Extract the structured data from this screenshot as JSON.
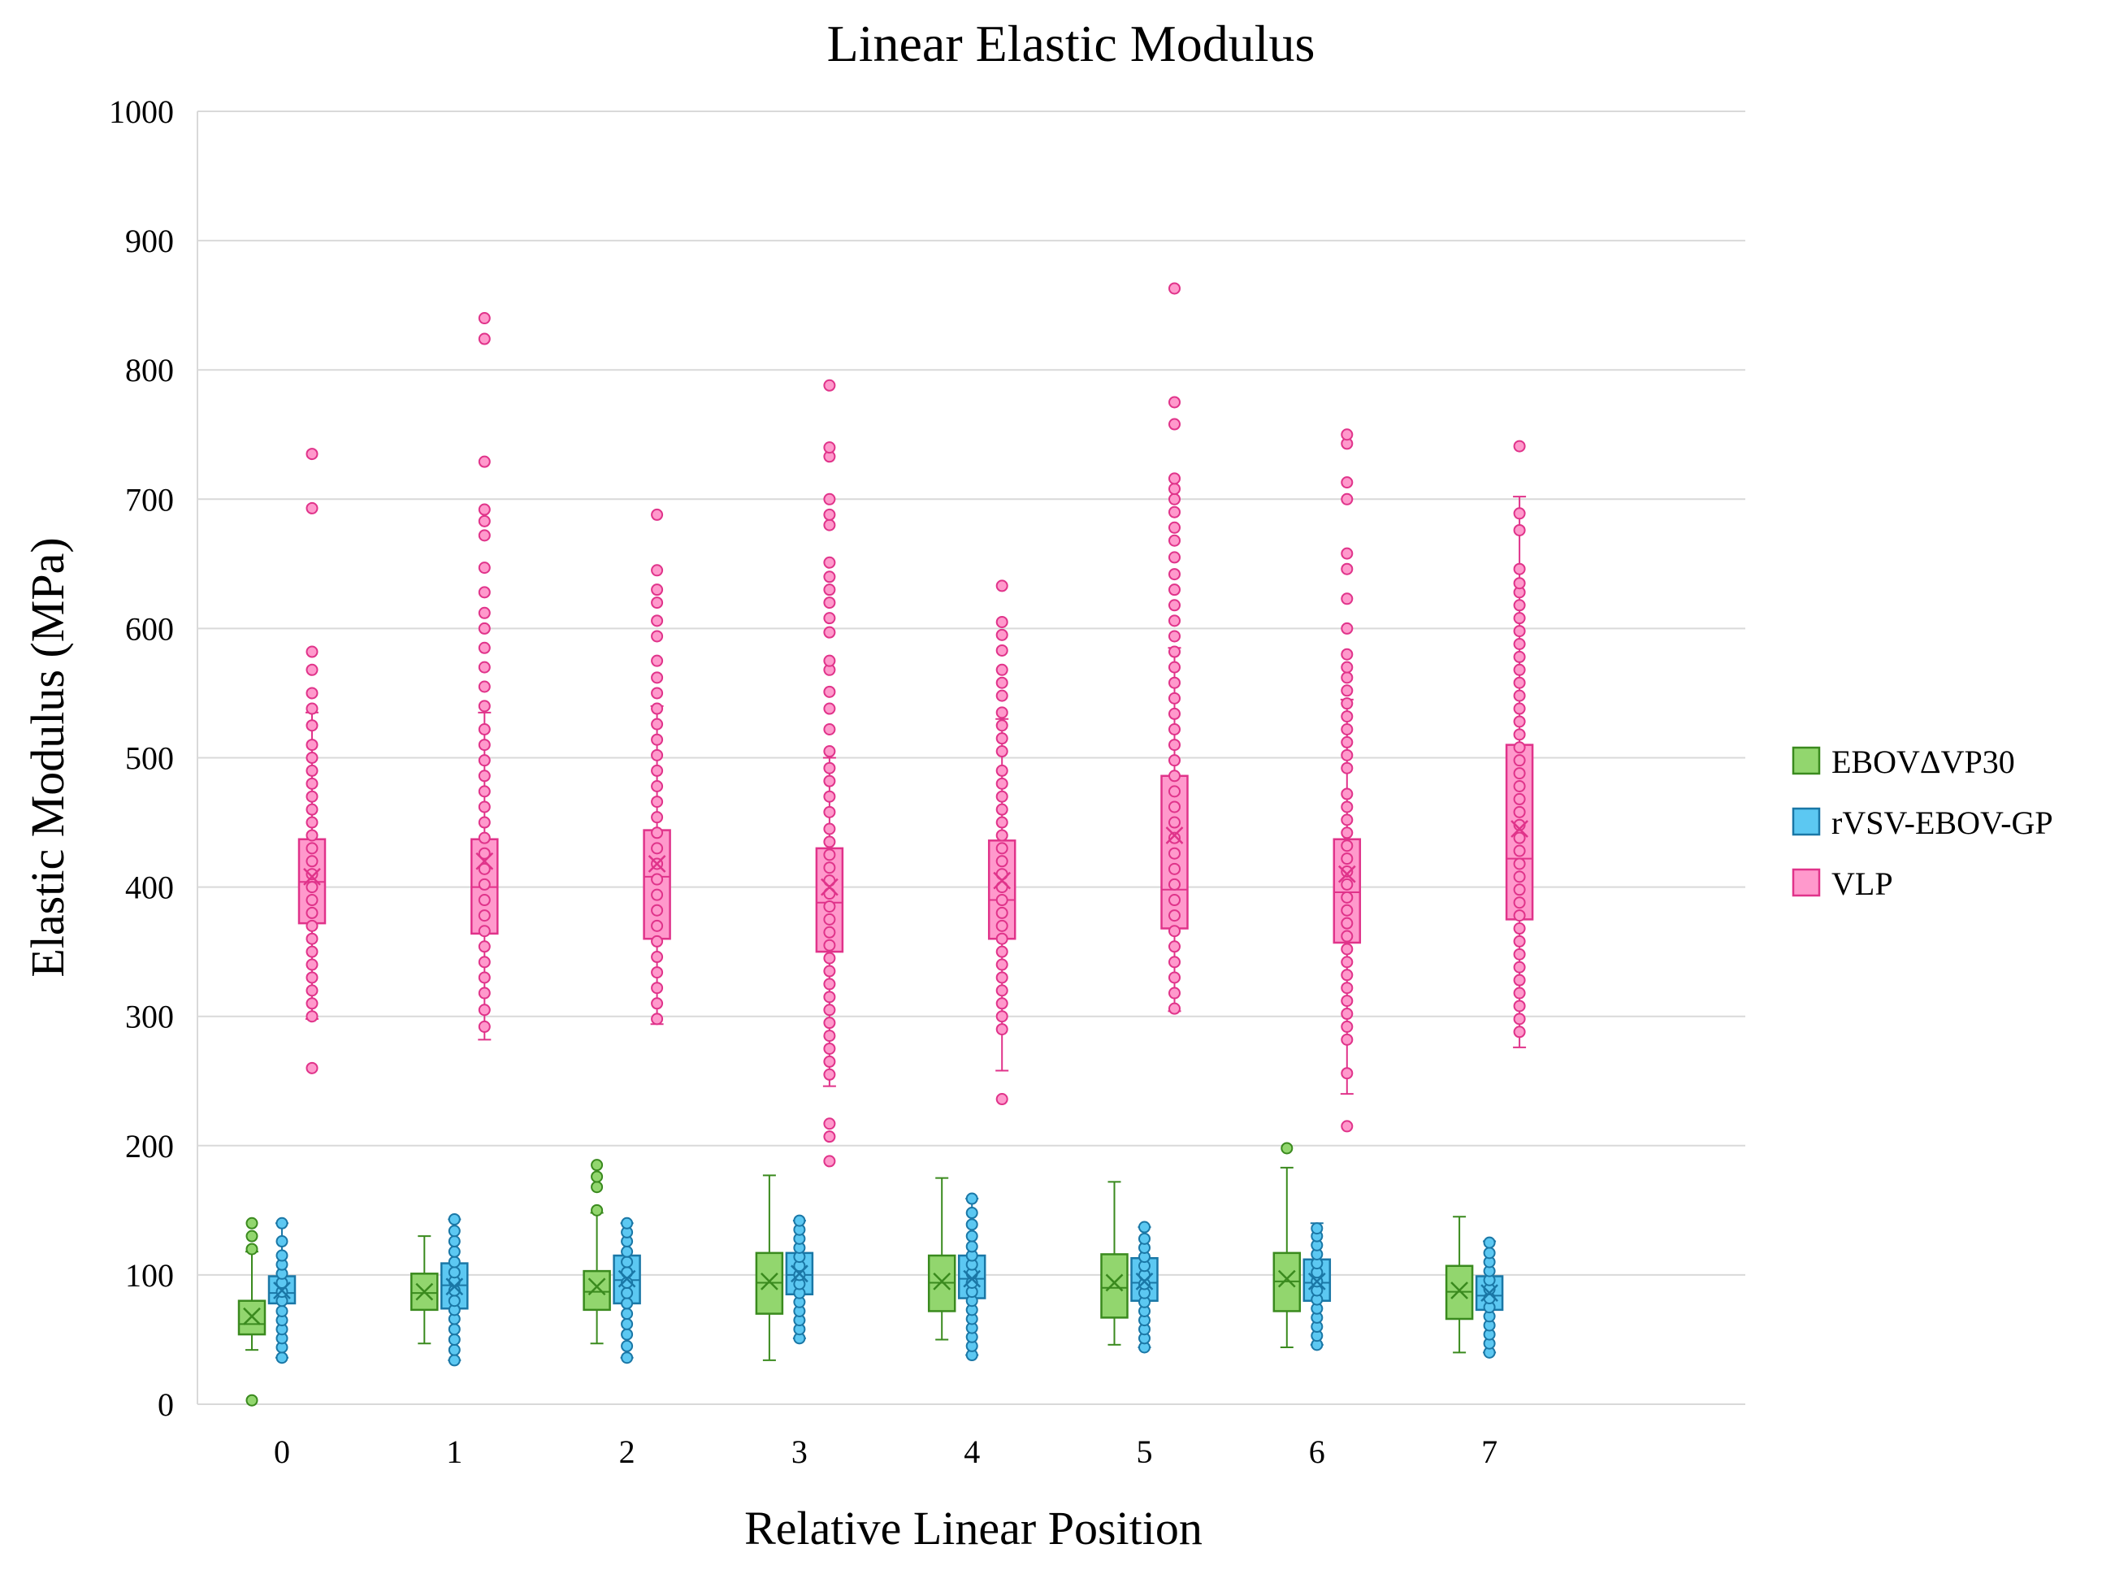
{
  "chart_data": {
    "type": "box",
    "title": "Linear Elastic Modulus",
    "xlabel": "Relative Linear Position",
    "ylabel": "Elastic Modulus (MPa)",
    "ylim": [
      0,
      1000
    ],
    "yticks": [
      "0",
      "100",
      "200",
      "300",
      "400",
      "500",
      "600",
      "700",
      "800",
      "900",
      "1000"
    ],
    "categories": [
      "0",
      "1",
      "2",
      "3",
      "4",
      "5",
      "6",
      "7"
    ],
    "grid": true,
    "legend_position": "right",
    "series": [
      {
        "name": "EBOVΔVP30",
        "fill": "#92d66e",
        "stroke": "#3a8a1e",
        "boxes": [
          {
            "min": 42,
            "q1": 54,
            "median": 62,
            "q3": 80,
            "max": 118,
            "mean": 68,
            "outliers": [
              3,
              120,
              130,
              140
            ]
          },
          {
            "min": 47,
            "q1": 73,
            "median": 86,
            "q3": 101,
            "max": 130,
            "mean": 87,
            "outliers": []
          },
          {
            "min": 47,
            "q1": 73,
            "median": 87,
            "q3": 103,
            "max": 148,
            "mean": 91,
            "outliers": [
              150,
              168,
              176,
              185
            ]
          },
          {
            "min": 34,
            "q1": 70,
            "median": 94,
            "q3": 117,
            "max": 177,
            "mean": 95,
            "outliers": []
          },
          {
            "min": 50,
            "q1": 72,
            "median": 94,
            "q3": 115,
            "max": 175,
            "mean": 95,
            "outliers": []
          },
          {
            "min": 46,
            "q1": 67,
            "median": 90,
            "q3": 116,
            "max": 172,
            "mean": 94,
            "outliers": []
          },
          {
            "min": 44,
            "q1": 72,
            "median": 95,
            "q3": 117,
            "max": 183,
            "mean": 97,
            "outliers": [
              198
            ]
          },
          {
            "min": 40,
            "q1": 66,
            "median": 87,
            "q3": 107,
            "max": 145,
            "mean": 88,
            "outliers": []
          }
        ]
      },
      {
        "name": "rVSV-EBOV-GP",
        "fill": "#5cc8f2",
        "stroke": "#1a77a6",
        "boxes": [
          {
            "min": 36,
            "q1": 78,
            "median": 86,
            "q3": 99,
            "max": 140,
            "mean": 88,
            "outliers": [
              36,
              44,
              51,
              58,
              65,
              72,
              80,
              87,
              94,
              101,
              108,
              115,
              126,
              140
            ]
          },
          {
            "min": 34,
            "q1": 74,
            "median": 92,
            "q3": 109,
            "max": 143,
            "mean": 91,
            "outliers": [
              34,
              42,
              50,
              58,
              66,
              73,
              80,
              88,
              95,
              102,
              110,
              118,
              126,
              134,
              143
            ]
          },
          {
            "min": 36,
            "q1": 78,
            "median": 96,
            "q3": 115,
            "max": 140,
            "mean": 97,
            "outliers": [
              36,
              45,
              54,
              62,
              70,
              78,
              86,
              94,
              102,
              110,
              118,
              126,
              133,
              140
            ]
          },
          {
            "min": 51,
            "q1": 85,
            "median": 100,
            "q3": 117,
            "max": 142,
            "mean": 101,
            "outliers": [
              51,
              58,
              65,
              72,
              79,
              86,
              93,
              100,
              107,
              114,
              121,
              128,
              135,
              142
            ]
          },
          {
            "min": 38,
            "q1": 82,
            "median": 97,
            "q3": 115,
            "max": 159,
            "mean": 97,
            "outliers": [
              38,
              45,
              52,
              59,
              66,
              73,
              80,
              87,
              94,
              101,
              108,
              115,
              122,
              130,
              139,
              148,
              159
            ]
          },
          {
            "min": 44,
            "q1": 80,
            "median": 94,
            "q3": 113,
            "max": 137,
            "mean": 95,
            "outliers": [
              44,
              51,
              58,
              65,
              72,
              79,
              86,
              93,
              100,
              107,
              114,
              121,
              128,
              137
            ]
          },
          {
            "min": 46,
            "q1": 80,
            "median": 94,
            "q3": 112,
            "max": 140,
            "mean": 95,
            "outliers": [
              46,
              53,
              60,
              67,
              74,
              81,
              88,
              95,
              102,
              109,
              116,
              123,
              130,
              136
            ]
          },
          {
            "min": 40,
            "q1": 73,
            "median": 84,
            "q3": 99,
            "max": 126,
            "mean": 86,
            "outliers": [
              40,
              47,
              54,
              61,
              68,
              75,
              82,
              89,
              96,
              103,
              110,
              117,
              125
            ]
          }
        ]
      },
      {
        "name": "VLP",
        "fill": "#ff99cc",
        "stroke": "#e0338a",
        "boxes": [
          {
            "min": 298,
            "q1": 372,
            "median": 404,
            "q3": 437,
            "max": 535,
            "mean": 408,
            "outliers": [
              260,
              300,
              310,
              320,
              330,
              340,
              350,
              360,
              370,
              380,
              390,
              400,
              410,
              420,
              430,
              440,
              450,
              460,
              470,
              480,
              490,
              500,
              510,
              525,
              538,
              550,
              568,
              582,
              693,
              735
            ]
          },
          {
            "min": 282,
            "q1": 364,
            "median": 400,
            "q3": 437,
            "max": 535,
            "mean": 420,
            "outliers": [
              292,
              305,
              318,
              330,
              342,
              354,
              366,
              378,
              390,
              402,
              414,
              426,
              438,
              450,
              462,
              474,
              486,
              498,
              510,
              522,
              540,
              555,
              570,
              585,
              600,
              612,
              628,
              647,
              672,
              683,
              692,
              729,
              824,
              840
            ]
          },
          {
            "min": 294,
            "q1": 360,
            "median": 408,
            "q3": 444,
            "max": 540,
            "mean": 418,
            "outliers": [
              298,
              310,
              322,
              334,
              346,
              358,
              370,
              382,
              394,
              406,
              418,
              430,
              442,
              454,
              466,
              478,
              490,
              502,
              514,
              526,
              538,
              550,
              562,
              575,
              594,
              606,
              620,
              630,
              645,
              688
            ]
          },
          {
            "min": 246,
            "q1": 350,
            "median": 388,
            "q3": 430,
            "max": 500,
            "mean": 400,
            "outliers": [
              188,
              207,
              217,
              255,
              265,
              275,
              285,
              295,
              305,
              315,
              325,
              335,
              345,
              355,
              365,
              375,
              385,
              395,
              405,
              415,
              425,
              435,
              445,
              458,
              470,
              482,
              492,
              505,
              522,
              538,
              551,
              568,
              575,
              597,
              608,
              620,
              630,
              640,
              651,
              680,
              688,
              700,
              733,
              740,
              788
            ]
          },
          {
            "min": 258,
            "q1": 360,
            "median": 390,
            "q3": 436,
            "max": 530,
            "mean": 405,
            "outliers": [
              236,
              290,
              300,
              310,
              320,
              330,
              340,
              350,
              360,
              370,
              380,
              390,
              400,
              410,
              420,
              430,
              440,
              450,
              460,
              470,
              480,
              490,
              505,
              515,
              525,
              535,
              548,
              558,
              568,
              583,
              595,
              605,
              633
            ]
          },
          {
            "min": 304,
            "q1": 368,
            "median": 398,
            "q3": 486,
            "max": 585,
            "mean": 440,
            "outliers": [
              306,
              318,
              330,
              342,
              354,
              366,
              378,
              390,
              402,
              414,
              426,
              438,
              450,
              462,
              474,
              486,
              498,
              510,
              522,
              534,
              546,
              558,
              570,
              582,
              594,
              606,
              618,
              630,
              642,
              655,
              668,
              678,
              690,
              700,
              708,
              716,
              758,
              775,
              863
            ]
          },
          {
            "min": 240,
            "q1": 357,
            "median": 396,
            "q3": 437,
            "max": 545,
            "mean": 410,
            "outliers": [
              215,
              256,
              282,
              292,
              302,
              312,
              322,
              332,
              342,
              352,
              362,
              372,
              382,
              392,
              402,
              412,
              422,
              432,
              442,
              452,
              462,
              472,
              492,
              502,
              512,
              522,
              532,
              542,
              552,
              562,
              570,
              580,
              600,
              623,
              646,
              658,
              700,
              713,
              743,
              750
            ]
          },
          {
            "min": 276,
            "q1": 375,
            "median": 422,
            "q3": 510,
            "max": 702,
            "mean": 445,
            "outliers": [
              288,
              298,
              308,
              318,
              328,
              338,
              348,
              358,
              368,
              378,
              388,
              398,
              408,
              418,
              428,
              438,
              448,
              458,
              468,
              478,
              488,
              498,
              508,
              518,
              528,
              538,
              548,
              558,
              568,
              578,
              588,
              598,
              608,
              618,
              628,
              635,
              646,
              676,
              689,
              741
            ]
          }
        ]
      }
    ]
  }
}
